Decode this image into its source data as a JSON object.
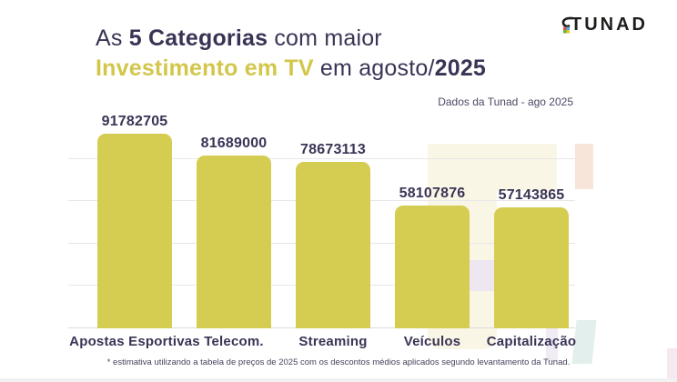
{
  "colors": {
    "accent_yellow": "#d5cd52",
    "title_dark": "#3b3355",
    "title_yellow": "#d2c74b",
    "grid": "#e7e7ea",
    "logo_dark": "#1e1e1c"
  },
  "header": {
    "title": {
      "l1_pre": "As ",
      "l1_bold": "5 Categorias",
      "l1_post": " com maior",
      "l2_yellow": "Investimento em TV",
      "l2_mid": " em agosto/",
      "l2_bold": "2025"
    },
    "logo_text": "TUNAD"
  },
  "chart": {
    "source_note": "Dados da Tunad - ago 2025",
    "footnote": "* estimativa utilizando a tabela de preços de 2025 com os descontos médios aplicados segundo levantamento da Tunad."
  },
  "chart_data": {
    "type": "bar",
    "title": "As 5 Categorias com maior Investimento em TV em agosto/2025",
    "subtitle": "Dados da Tunad - ago 2025",
    "categories": [
      "Apostas Esportivas",
      "Telecom.",
      "Streaming",
      "Veículos",
      "Capitalização"
    ],
    "values": [
      91782705,
      81689000,
      78673113,
      58107876,
      57143865
    ],
    "data_labels": [
      "91782705",
      "81689000",
      "78673113",
      "58107876",
      "57143865"
    ],
    "xlabel": "",
    "ylabel": "",
    "ylim": [
      0,
      100000000
    ],
    "gridlines": [
      0,
      20000000,
      40000000,
      60000000,
      80000000
    ],
    "grid": true,
    "legend": false,
    "bar_color": "#d5cd52"
  }
}
